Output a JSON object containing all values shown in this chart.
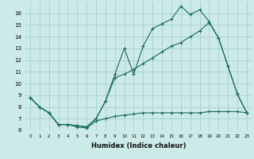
{
  "xlabel": "Humidex (Indice chaleur)",
  "background_color": "#cceae8",
  "line_color": "#1a6b5a",
  "grid_color": "#aad4d0",
  "xlim": [
    -0.5,
    23.5
  ],
  "ylim": [
    6,
    17
  ],
  "yticks": [
    6,
    7,
    8,
    9,
    10,
    11,
    12,
    13,
    14,
    15,
    16
  ],
  "xticks": [
    0,
    1,
    2,
    3,
    4,
    5,
    6,
    7,
    8,
    9,
    10,
    11,
    12,
    13,
    14,
    15,
    16,
    17,
    18,
    19,
    20,
    21,
    22,
    23
  ],
  "line1": [
    8.8,
    8.0,
    7.5,
    6.5,
    6.5,
    6.4,
    6.3,
    7.0,
    8.5,
    10.8,
    13.0,
    10.8,
    13.2,
    14.7,
    15.1,
    15.5,
    16.6,
    15.9,
    16.3,
    15.3,
    13.9,
    11.5,
    9.1,
    7.5
  ],
  "line2": [
    8.8,
    8.0,
    7.5,
    6.5,
    6.5,
    6.4,
    6.3,
    7.0,
    8.5,
    10.5,
    10.8,
    11.2,
    11.7,
    12.2,
    12.7,
    13.2,
    13.5,
    14.0,
    14.5,
    15.2,
    13.9,
    11.5,
    9.1,
    7.5
  ],
  "line3": [
    8.8,
    8.0,
    7.5,
    6.5,
    6.5,
    6.3,
    6.2,
    6.8,
    7.0,
    7.2,
    7.3,
    7.4,
    7.5,
    7.5,
    7.5,
    7.5,
    7.5,
    7.5,
    7.5,
    7.6,
    7.6,
    7.6,
    7.6,
    7.5
  ]
}
